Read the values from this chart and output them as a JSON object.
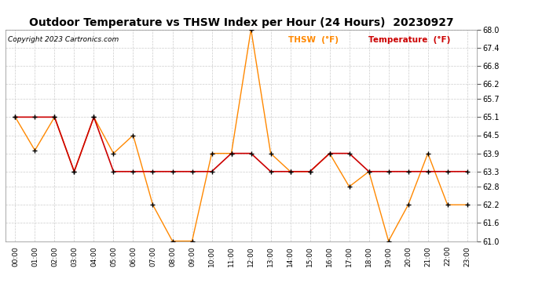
{
  "title": "Outdoor Temperature vs THSW Index per Hour (24 Hours)  20230927",
  "copyright": "Copyright 2023 Cartronics.com",
  "legend_thsw": "THSW  (°F)",
  "legend_temp": "Temperature  (°F)",
  "hours": [
    "00:00",
    "01:00",
    "02:00",
    "03:00",
    "04:00",
    "05:00",
    "06:00",
    "07:00",
    "08:00",
    "09:00",
    "10:00",
    "11:00",
    "12:00",
    "13:00",
    "14:00",
    "15:00",
    "16:00",
    "17:00",
    "18:00",
    "19:00",
    "20:00",
    "21:00",
    "22:00",
    "23:00"
  ],
  "thsw": [
    65.1,
    64.0,
    65.1,
    63.3,
    65.1,
    63.9,
    64.5,
    62.2,
    61.0,
    61.0,
    63.9,
    63.9,
    68.0,
    63.9,
    63.3,
    63.3,
    63.9,
    62.8,
    63.3,
    61.0,
    62.2,
    63.9,
    62.2,
    62.2
  ],
  "temp": [
    65.1,
    65.1,
    65.1,
    63.3,
    65.1,
    63.3,
    63.3,
    63.3,
    63.3,
    63.3,
    63.3,
    63.9,
    63.9,
    63.3,
    63.3,
    63.3,
    63.9,
    63.9,
    63.3,
    63.3,
    63.3,
    63.3,
    63.3,
    63.3
  ],
  "thsw_color": "#ff8800",
  "temp_color": "#cc0000",
  "marker_color": "black",
  "ylim_min": 61.0,
  "ylim_max": 68.0,
  "yticks": [
    61.0,
    61.6,
    62.2,
    62.8,
    63.3,
    63.9,
    64.5,
    65.1,
    65.7,
    66.2,
    66.8,
    67.4,
    68.0
  ],
  "bg_color": "#ffffff",
  "grid_color": "#cccccc",
  "title_fontsize": 10,
  "copyright_fontsize": 6.5,
  "legend_fontsize": 7.5
}
